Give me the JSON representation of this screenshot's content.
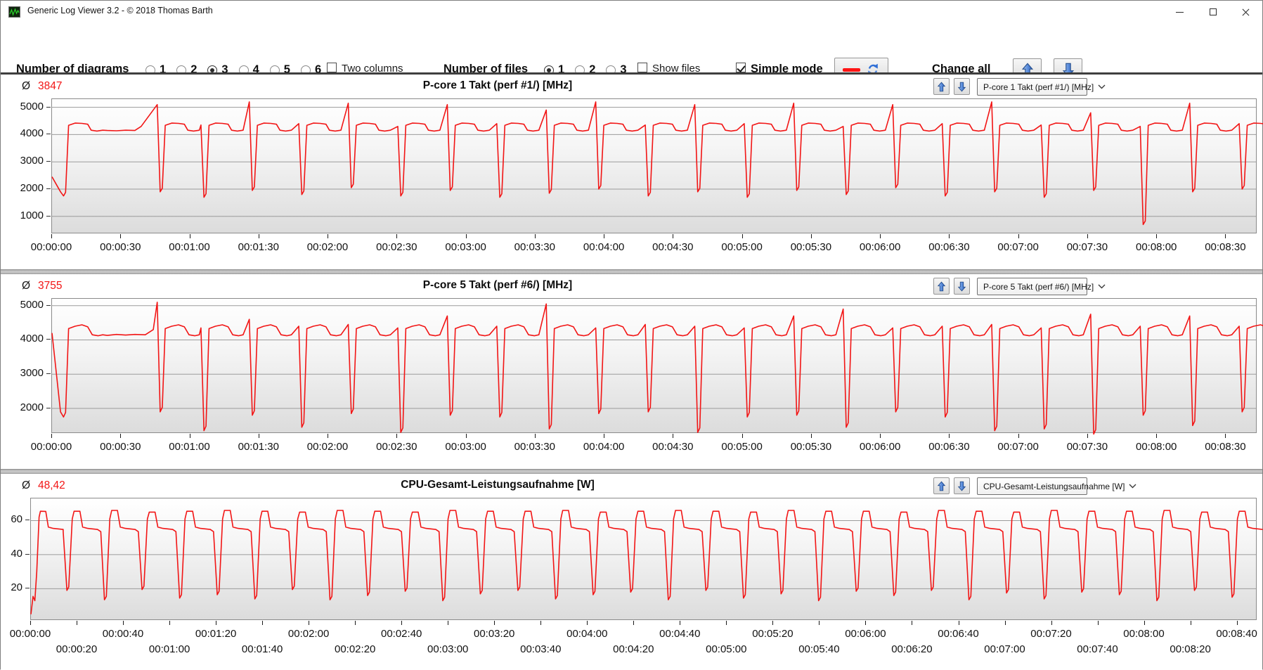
{
  "window": {
    "title": "Generic Log Viewer 3.2 - © 2018 Thomas Barth",
    "icons": {
      "minimize": "thin-dash",
      "maximize": "outline-square",
      "close": "x-cross",
      "app": "green-waveform"
    }
  },
  "toolbar": {
    "diagrams_label": "Number of diagrams",
    "diagram_options": [
      "1",
      "2",
      "3",
      "4",
      "5",
      "6"
    ],
    "diagrams_selected": "3",
    "two_columns_label": "Two columns",
    "two_columns_checked": false,
    "files_label": "Number of files",
    "file_options": [
      "1",
      "2",
      "3"
    ],
    "files_selected": "1",
    "show_files_label": "Show files",
    "show_files_checked": false,
    "simple_mode_label": "Simple mode",
    "simple_mode_checked": true,
    "change_all_label": "Change all",
    "icons": {
      "line_sample": "red-dash",
      "refresh": "sync-arrows",
      "up": "blue-arrow-up",
      "down": "blue-arrow-down"
    }
  },
  "colors": {
    "line_red": "#f21515",
    "grid": "#9b9b9b",
    "arrow_blue": "#3c74cf"
  },
  "panels": [
    {
      "avg_symbol": "Ø",
      "avg": "3847",
      "title": "P-core 1 Takt (perf #1/) [MHz]",
      "dropdown": "P-core 1 Takt (perf #1/) [MHz]",
      "chart_data": {
        "type": "line",
        "title": "P-core 1 Takt (perf #1/) [MHz]",
        "unit": "MHz",
        "average": 3847,
        "line_color": "#f21515",
        "x_domain": [
          0,
          523
        ],
        "y_domain": [
          400,
          5300
        ],
        "y_ticks": [
          1000,
          2000,
          3000,
          4000,
          5000
        ],
        "dip_rebound": 130,
        "intro": [
          [
            0,
            2450
          ]
        ],
        "cycle_shape": [
          [
            -1.3,
            "pre"
          ],
          [
            0,
            "dip"
          ],
          [
            0.9,
            "dipr"
          ],
          [
            2.2,
            4340
          ],
          [
            5,
            4420
          ],
          [
            8,
            4410
          ],
          [
            10.5,
            4380
          ],
          [
            12,
            4160
          ],
          [
            14.5,
            4130
          ],
          [
            17,
            4160
          ]
        ],
        "cycles": [
          {
            "t": 5,
            "dip": 1750,
            "pre": 1900,
            "extra": [
              [
                24,
                4150
              ],
              [
                28,
                4140
              ],
              [
                32,
                4160
              ],
              [
                36,
                4150
              ],
              [
                38.7,
                4300
              ]
            ]
          },
          {
            "t": 47,
            "dip": 1900,
            "pre": 5100
          },
          {
            "t": 66,
            "dip": 1700,
            "pre": 4350
          },
          {
            "t": 87,
            "dip": 1950,
            "pre": 5200
          },
          {
            "t": 108.5,
            "dip": 1800,
            "pre": 4400
          },
          {
            "t": 130,
            "dip": 2050,
            "pre": 5150
          },
          {
            "t": 151.5,
            "dip": 1750,
            "pre": 4300
          },
          {
            "t": 173,
            "dip": 1950,
            "pre": 5100
          },
          {
            "t": 194.5,
            "dip": 1700,
            "pre": 4400
          },
          {
            "t": 216,
            "dip": 1850,
            "pre": 4900
          },
          {
            "t": 237.5,
            "dip": 2000,
            "pre": 5200
          },
          {
            "t": 259,
            "dip": 1750,
            "pre": 4350
          },
          {
            "t": 280.5,
            "dip": 1900,
            "pre": 5100
          },
          {
            "t": 302,
            "dip": 1700,
            "pre": 4400
          },
          {
            "t": 323.5,
            "dip": 1950,
            "pre": 5150
          },
          {
            "t": 345,
            "dip": 1800,
            "pre": 4300
          },
          {
            "t": 366.5,
            "dip": 2050,
            "pre": 5100
          },
          {
            "t": 388,
            "dip": 1750,
            "pre": 4400
          },
          {
            "t": 409.5,
            "dip": 1900,
            "pre": 5200
          },
          {
            "t": 431,
            "dip": 1700,
            "pre": 4350
          },
          {
            "t": 452.5,
            "dip": 1950,
            "pre": 4800
          },
          {
            "t": 474,
            "dip": 700,
            "pre": 4300
          },
          {
            "t": 495.5,
            "dip": 1900,
            "pre": 5150
          },
          {
            "t": 517,
            "dip": 2000,
            "pre": 4400
          }
        ],
        "x_label_rows": [
          [
            [
              0,
              "00:00:00"
            ],
            [
              30,
              "00:00:30"
            ],
            [
              60,
              "00:01:00"
            ],
            [
              90,
              "00:01:30"
            ],
            [
              120,
              "00:02:00"
            ],
            [
              150,
              "00:02:30"
            ],
            [
              180,
              "00:03:00"
            ],
            [
              210,
              "00:03:30"
            ],
            [
              240,
              "00:04:00"
            ],
            [
              270,
              "00:04:30"
            ],
            [
              300,
              "00:05:00"
            ],
            [
              330,
              "00:05:30"
            ],
            [
              360,
              "00:06:00"
            ],
            [
              390,
              "00:06:30"
            ],
            [
              420,
              "00:07:00"
            ],
            [
              450,
              "00:07:30"
            ],
            [
              480,
              "00:08:00"
            ],
            [
              510,
              "00:08:30"
            ]
          ]
        ]
      }
    },
    {
      "avg_symbol": "Ø",
      "avg": "3755",
      "title": "P-core 5 Takt (perf #6/) [MHz]",
      "dropdown": "P-core 5 Takt (perf #6/) [MHz]",
      "chart_data": {
        "type": "line",
        "title": "P-core 5 Takt (perf #6/) [MHz]",
        "unit": "MHz",
        "average": 3755,
        "line_color": "#f21515",
        "x_domain": [
          0,
          523
        ],
        "y_domain": [
          1300,
          5200
        ],
        "y_ticks": [
          2000,
          3000,
          4000,
          5000
        ],
        "dip_rebound": 130,
        "intro": [
          [
            0,
            4200
          ]
        ],
        "cycle_shape": [
          [
            -1.3,
            "pre"
          ],
          [
            0,
            "dip"
          ],
          [
            0.9,
            "dipr"
          ],
          [
            2.2,
            4330
          ],
          [
            5,
            4400
          ],
          [
            8,
            4440
          ],
          [
            10.5,
            4380
          ],
          [
            12.5,
            4150
          ],
          [
            15,
            4120
          ],
          [
            17,
            4150
          ]
        ],
        "cycles": [
          {
            "t": 5,
            "dip": 1750,
            "pre": 1900,
            "extra": [
              [
                24,
                4130
              ],
              [
                28,
                4160
              ],
              [
                32,
                4140
              ],
              [
                36,
                4160
              ],
              [
                40.5,
                4150
              ],
              [
                44,
                4300
              ]
            ]
          },
          {
            "t": 47,
            "dip": 1900,
            "pre": 5100
          },
          {
            "t": 66,
            "dip": 1350,
            "pre": 4350
          },
          {
            "t": 87,
            "dip": 1800,
            "pre": 4600
          },
          {
            "t": 108.5,
            "dip": 1450,
            "pre": 4400
          },
          {
            "t": 130,
            "dip": 1850,
            "pre": 4450
          },
          {
            "t": 151.5,
            "dip": 1300,
            "pre": 4350
          },
          {
            "t": 173,
            "dip": 1800,
            "pre": 4700
          },
          {
            "t": 194.5,
            "dip": 1750,
            "pre": 4400
          },
          {
            "t": 216,
            "dip": 1400,
            "pre": 5050
          },
          {
            "t": 237.5,
            "dip": 1850,
            "pre": 4350
          },
          {
            "t": 259,
            "dip": 1900,
            "pre": 4450
          },
          {
            "t": 280.5,
            "dip": 1300,
            "pre": 4400
          },
          {
            "t": 302,
            "dip": 1750,
            "pre": 4350
          },
          {
            "t": 323.5,
            "dip": 1800,
            "pre": 4700
          },
          {
            "t": 345,
            "dip": 1450,
            "pre": 4900
          },
          {
            "t": 366.5,
            "dip": 1900,
            "pre": 4350
          },
          {
            "t": 388,
            "dip": 1750,
            "pre": 4400
          },
          {
            "t": 409.5,
            "dip": 1350,
            "pre": 4450
          },
          {
            "t": 431,
            "dip": 1400,
            "pre": 4350
          },
          {
            "t": 452.5,
            "dip": 1250,
            "pre": 4750
          },
          {
            "t": 474,
            "dip": 1800,
            "pre": 4400
          },
          {
            "t": 495.5,
            "dip": 1500,
            "pre": 4700
          },
          {
            "t": 517,
            "dip": 1900,
            "pre": 4400
          }
        ],
        "x_label_rows": [
          [
            [
              0,
              "00:00:00"
            ],
            [
              30,
              "00:00:30"
            ],
            [
              60,
              "00:01:00"
            ],
            [
              90,
              "00:01:30"
            ],
            [
              120,
              "00:02:00"
            ],
            [
              150,
              "00:02:30"
            ],
            [
              180,
              "00:03:00"
            ],
            [
              210,
              "00:03:30"
            ],
            [
              240,
              "00:04:00"
            ],
            [
              270,
              "00:04:30"
            ],
            [
              300,
              "00:05:00"
            ],
            [
              330,
              "00:05:30"
            ],
            [
              360,
              "00:06:00"
            ],
            [
              390,
              "00:06:30"
            ],
            [
              420,
              "00:07:00"
            ],
            [
              450,
              "00:07:30"
            ],
            [
              480,
              "00:08:00"
            ],
            [
              510,
              "00:08:30"
            ]
          ]
        ]
      }
    },
    {
      "avg_symbol": "Ø",
      "avg": "48,42",
      "title": "CPU-Gesamt-Leistungsaufnahme [W]",
      "dropdown": "CPU-Gesamt-Leistungsaufnahme [W]",
      "chart_data": {
        "type": "line",
        "title": "CPU-Gesamt-Leistungsaufnahme [W]",
        "unit": "W",
        "average": 48.42,
        "line_color": "#f21515",
        "x_domain": [
          0,
          528
        ],
        "y_domain": [
          2,
          73
        ],
        "y_ticks": [
          20,
          40,
          60
        ],
        "dip_rebound": 2,
        "intro": [
          [
            0,
            5
          ],
          [
            0.9,
            15.5
          ],
          [
            1.7,
            13
          ],
          [
            2.5,
            30
          ],
          [
            3.5,
            62
          ],
          [
            4.1,
            65.5
          ],
          [
            6.4,
            65.4
          ],
          [
            7.5,
            56.2
          ],
          [
            9.6,
            55.4
          ],
          [
            13.9,
            54.8
          ]
        ],
        "cycle_shape": [
          [
            -1.6,
            53.5
          ],
          [
            0,
            "dip"
          ],
          [
            0.8,
            "dipr"
          ],
          [
            2.3,
            61
          ],
          [
            3.1,
            "peak"
          ],
          [
            5.6,
            "peak"
          ],
          [
            6.8,
            56.2
          ],
          [
            9,
            55.4
          ],
          [
            13.2,
            54.8
          ]
        ],
        "cycles": [
          {
            "t": 15.5,
            "dip": 19,
            "peak": 65.5
          },
          {
            "t": 31.7,
            "dip": 13.5,
            "peak": 66
          },
          {
            "t": 47.9,
            "dip": 19.5,
            "peak": 65
          },
          {
            "t": 64.1,
            "dip": 14.5,
            "peak": 65.5
          },
          {
            "t": 80.3,
            "dip": 16.5,
            "peak": 66
          },
          {
            "t": 96.5,
            "dip": 14,
            "peak": 65.5
          },
          {
            "t": 112.7,
            "dip": 19.5,
            "peak": 65
          },
          {
            "t": 128.9,
            "dip": 13.5,
            "peak": 66
          },
          {
            "t": 145.1,
            "dip": 16,
            "peak": 65.5
          },
          {
            "t": 161.3,
            "dip": 18.5,
            "peak": 65
          },
          {
            "t": 177.5,
            "dip": 13,
            "peak": 66
          },
          {
            "t": 193.7,
            "dip": 17,
            "peak": 65.5
          },
          {
            "t": 209.9,
            "dip": 19,
            "peak": 65.5
          },
          {
            "t": 226.1,
            "dip": 14,
            "peak": 66
          },
          {
            "t": 242.3,
            "dip": 16.5,
            "peak": 65
          },
          {
            "t": 258.5,
            "dip": 18,
            "peak": 65.5
          },
          {
            "t": 274.7,
            "dip": 13.5,
            "peak": 66
          },
          {
            "t": 290.9,
            "dip": 19,
            "peak": 65.5
          },
          {
            "t": 307.1,
            "dip": 14.5,
            "peak": 65
          },
          {
            "t": 323.3,
            "dip": 17,
            "peak": 66
          },
          {
            "t": 339.5,
            "dip": 13,
            "peak": 65.5
          },
          {
            "t": 355.7,
            "dip": 18.5,
            "peak": 65.5
          },
          {
            "t": 371.9,
            "dip": 16,
            "peak": 65
          },
          {
            "t": 388.1,
            "dip": 19,
            "peak": 66
          },
          {
            "t": 404.3,
            "dip": 13.5,
            "peak": 65.5
          },
          {
            "t": 420.5,
            "dip": 17.5,
            "peak": 65
          },
          {
            "t": 436.7,
            "dip": 14,
            "peak": 66
          },
          {
            "t": 452.9,
            "dip": 18,
            "peak": 65.5
          },
          {
            "t": 469.1,
            "dip": 16.5,
            "peak": 65.5
          },
          {
            "t": 485.3,
            "dip": 13,
            "peak": 66
          },
          {
            "t": 501.5,
            "dip": 19,
            "peak": 65
          },
          {
            "t": 517.7,
            "dip": 15,
            "peak": 65.5
          }
        ],
        "x_label_rows": [
          [
            [
              0,
              "00:00:00"
            ],
            [
              40,
              "00:00:40"
            ],
            [
              80,
              "00:01:20"
            ],
            [
              120,
              "00:02:00"
            ],
            [
              160,
              "00:02:40"
            ],
            [
              200,
              "00:03:20"
            ],
            [
              240,
              "00:04:00"
            ],
            [
              280,
              "00:04:40"
            ],
            [
              320,
              "00:05:20"
            ],
            [
              360,
              "00:06:00"
            ],
            [
              400,
              "00:06:40"
            ],
            [
              440,
              "00:07:20"
            ],
            [
              480,
              "00:08:00"
            ],
            [
              520,
              "00:08:40"
            ]
          ],
          [
            [
              20,
              "00:00:20"
            ],
            [
              60,
              "00:01:00"
            ],
            [
              100,
              "00:01:40"
            ],
            [
              140,
              "00:02:20"
            ],
            [
              180,
              "00:03:00"
            ],
            [
              220,
              "00:03:40"
            ],
            [
              260,
              "00:04:20"
            ],
            [
              300,
              "00:05:00"
            ],
            [
              340,
              "00:05:40"
            ],
            [
              380,
              "00:06:20"
            ],
            [
              420,
              "00:07:00"
            ],
            [
              460,
              "00:07:40"
            ],
            [
              500,
              "00:08:20"
            ]
          ]
        ]
      }
    }
  ]
}
